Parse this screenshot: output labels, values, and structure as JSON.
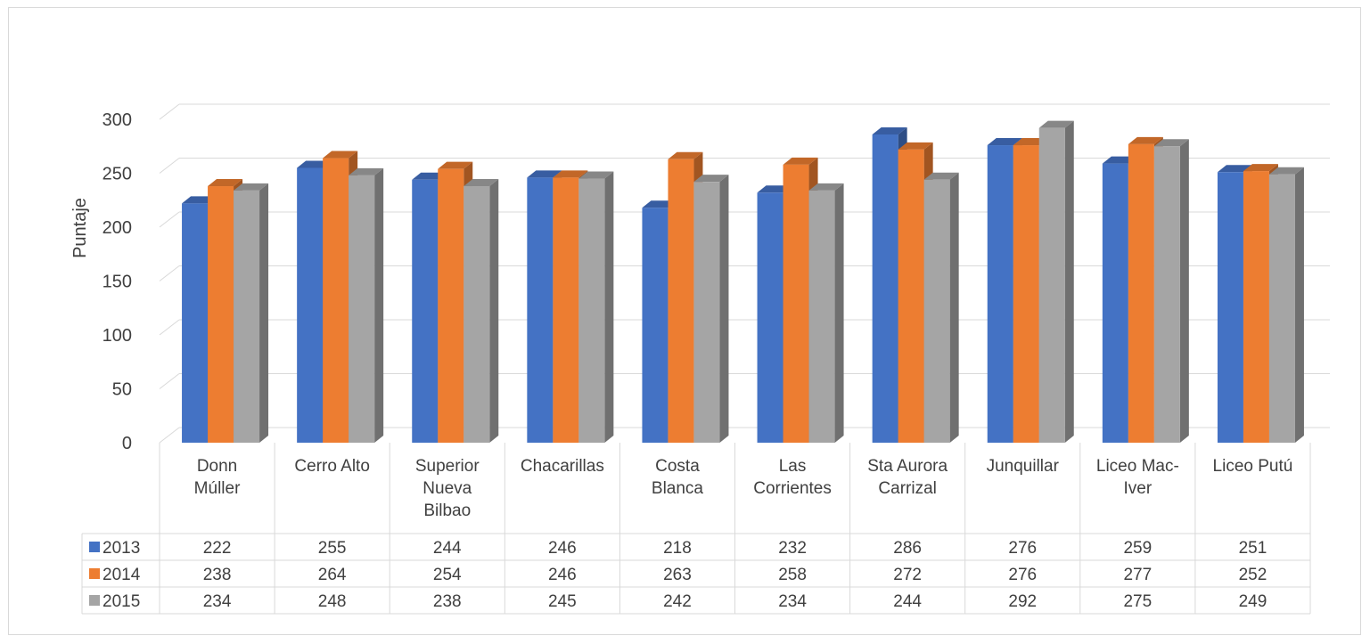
{
  "chart_data": {
    "type": "bar",
    "ylabel": "Puntaje",
    "ylim": [
      0,
      300
    ],
    "yticks": [
      0,
      50,
      100,
      150,
      200,
      250,
      300
    ],
    "grid": true,
    "legend": "data-table",
    "categories": [
      "Donn Múller",
      "Cerro Alto",
      "Superior Nueva Bilbao",
      "Chacarillas",
      "Costa Blanca",
      "Las Corrientes",
      "Sta Aurora Carrizal",
      "Junquillar",
      "Liceo Mac-Iver",
      "Liceo Putú"
    ],
    "series": [
      {
        "name": "2013",
        "color": "#4472c4",
        "values": [
          222,
          255,
          244,
          246,
          218,
          232,
          286,
          276,
          259,
          251
        ]
      },
      {
        "name": "2014",
        "color": "#ed7d31",
        "values": [
          238,
          264,
          254,
          246,
          263,
          258,
          272,
          276,
          277,
          252
        ]
      },
      {
        "name": "2015",
        "color": "#a5a5a5",
        "values": [
          234,
          248,
          238,
          245,
          242,
          234,
          244,
          292,
          275,
          249
        ]
      }
    ]
  }
}
